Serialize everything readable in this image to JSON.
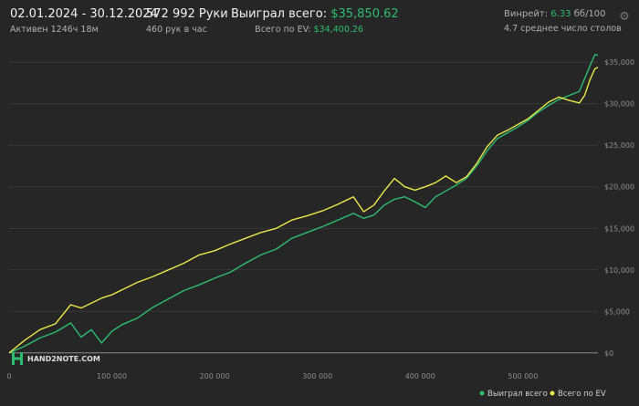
{
  "header": {
    "date_range": "02.01.2024 - 30.12.2024",
    "active": "Активен 1246ч 18м",
    "hands": "572 992 Руки",
    "hands_per_hour": "460 рук в час",
    "won_label": "Выиграл всего:",
    "won_value": "$35,850.62",
    "ev_label": "Всего по EV:",
    "ev_value": "$34,400.26",
    "winrate_label": "Винрейт:",
    "winrate_value": "6.33",
    "winrate_unit": "бб/100",
    "tables": "4.7 среднее число столов"
  },
  "logo": {
    "text": "HAND2NOTE.COM"
  },
  "colors": {
    "won": "#2dbd72",
    "ev": "#e8e84a",
    "background": "#262626",
    "grid": "#3d3d3d"
  },
  "chart_data": {
    "type": "line",
    "x_ticks": [
      "0",
      "100 000",
      "200 000",
      "300 000",
      "400 000",
      "500 000"
    ],
    "y_ticks": [
      "$0",
      "$5,000",
      "$10,000",
      "$15,000",
      "$20,000",
      "$25,000",
      "$30,000",
      "$35,000"
    ],
    "xlim": [
      0,
      573000
    ],
    "ylim": [
      -2000,
      37000
    ],
    "grid": true,
    "legend_position": "bottom-right",
    "series": [
      {
        "name": "Выиграл всего",
        "color": "#2dbd72",
        "x": [
          0,
          15000,
          30000,
          45000,
          60000,
          70000,
          80000,
          90000,
          100000,
          110000,
          125000,
          140000,
          155000,
          170000,
          185000,
          200000,
          215000,
          230000,
          245000,
          260000,
          275000,
          290000,
          305000,
          320000,
          335000,
          345000,
          355000,
          365000,
          375000,
          385000,
          395000,
          405000,
          415000,
          425000,
          435000,
          445000,
          455000,
          465000,
          475000,
          485000,
          495000,
          505000,
          515000,
          525000,
          535000,
          545000,
          555000,
          560000,
          565000,
          570000,
          573000
        ],
        "y": [
          0,
          800,
          1800,
          2500,
          3600,
          1900,
          2800,
          1200,
          2600,
          3400,
          4200,
          5500,
          6500,
          7500,
          8200,
          9000,
          9700,
          10800,
          11800,
          12500,
          13800,
          14500,
          15200,
          16000,
          16800,
          16200,
          16600,
          17800,
          18500,
          18800,
          18200,
          17500,
          18800,
          19500,
          20200,
          21000,
          22500,
          24300,
          25800,
          26500,
          27200,
          28000,
          29000,
          29800,
          30500,
          31000,
          31500,
          33000,
          34500,
          35900,
          35850
        ]
      },
      {
        "name": "Всего по EV",
        "color": "#e8e84a",
        "x": [
          0,
          15000,
          30000,
          45000,
          60000,
          70000,
          80000,
          90000,
          100000,
          110000,
          125000,
          140000,
          155000,
          170000,
          185000,
          200000,
          215000,
          230000,
          245000,
          260000,
          275000,
          290000,
          305000,
          320000,
          335000,
          345000,
          355000,
          365000,
          375000,
          385000,
          395000,
          405000,
          415000,
          425000,
          435000,
          445000,
          455000,
          465000,
          475000,
          485000,
          495000,
          505000,
          515000,
          525000,
          535000,
          545000,
          555000,
          560000,
          565000,
          570000,
          573000
        ],
        "y": [
          0,
          1500,
          2800,
          3500,
          5800,
          5400,
          6000,
          6600,
          7000,
          7600,
          8500,
          9200,
          10000,
          10800,
          11800,
          12300,
          13100,
          13800,
          14500,
          15000,
          16000,
          16500,
          17100,
          17900,
          18800,
          17000,
          17800,
          19500,
          21000,
          20000,
          19600,
          20000,
          20500,
          21300,
          20500,
          21200,
          22800,
          24800,
          26200,
          26800,
          27500,
          28200,
          29200,
          30200,
          30800,
          30400,
          30100,
          31000,
          32800,
          34200,
          34400
        ]
      }
    ]
  }
}
